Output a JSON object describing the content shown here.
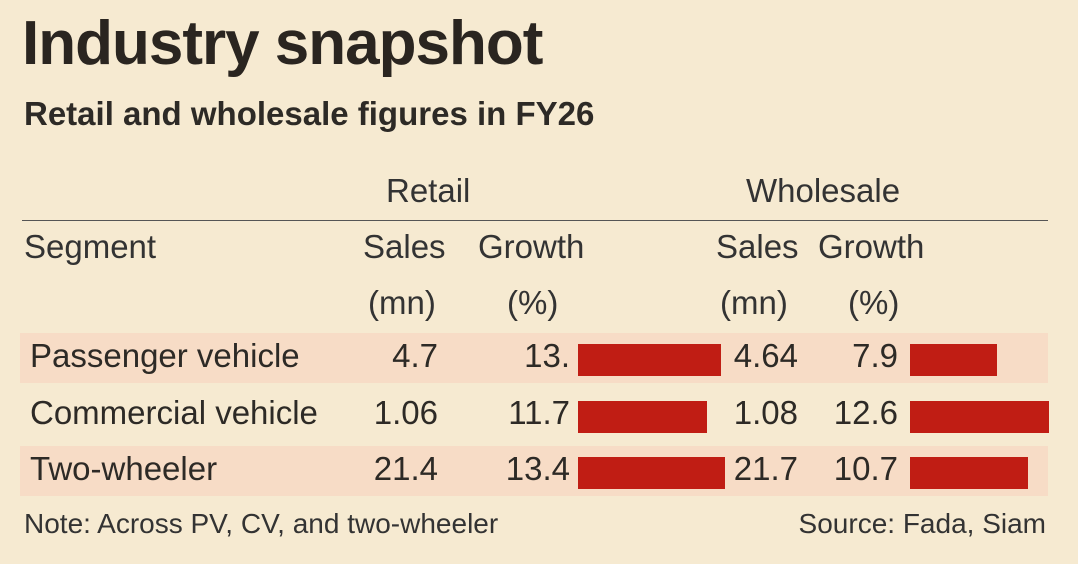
{
  "title": "Industry snapshot",
  "subtitle": "Retail and wholesale figures in FY26",
  "groups": {
    "retail": "Retail",
    "wholesale": "Wholesale"
  },
  "headers": {
    "segment": "Segment",
    "sales": "Sales",
    "sales_unit": "(mn)",
    "growth": "Growth",
    "growth_unit": "(%)"
  },
  "rows": [
    {
      "segment": "Passenger vehicle",
      "retail_sales": "4.7",
      "retail_growth": "13.",
      "wholesale_sales": "4.64",
      "wholesale_growth": "7.9"
    },
    {
      "segment": "Commercial vehicle",
      "retail_sales": "1.06",
      "retail_growth": "11.7",
      "wholesale_sales": "1.08",
      "wholesale_growth": "12.6"
    },
    {
      "segment": "Two-wheeler",
      "retail_sales": "21.4",
      "retail_growth": "13.4",
      "wholesale_sales": "21.7",
      "wholesale_growth": "10.7"
    }
  ],
  "note": "Note: Across PV, CV, and two-wheeler",
  "source": "Source: Fada, Siam",
  "colors": {
    "bar": "#c01d14",
    "background": "#f6ead1",
    "row_shade": "#f7dcc6"
  },
  "chart_data": {
    "type": "table",
    "title": "Industry snapshot",
    "subtitle": "Retail and wholesale figures in FY26",
    "categories": [
      "Passenger vehicle",
      "Commercial vehicle",
      "Two-wheeler"
    ],
    "series": [
      {
        "name": "Retail Sales (mn)",
        "values": [
          4.7,
          1.06,
          21.4
        ]
      },
      {
        "name": "Retail Growth (%)",
        "values": [
          13.0,
          11.7,
          13.4
        ]
      },
      {
        "name": "Wholesale Sales (mn)",
        "values": [
          4.64,
          1.08,
          21.7
        ]
      },
      {
        "name": "Wholesale Growth (%)",
        "values": [
          7.9,
          12.6,
          10.7
        ]
      }
    ]
  }
}
